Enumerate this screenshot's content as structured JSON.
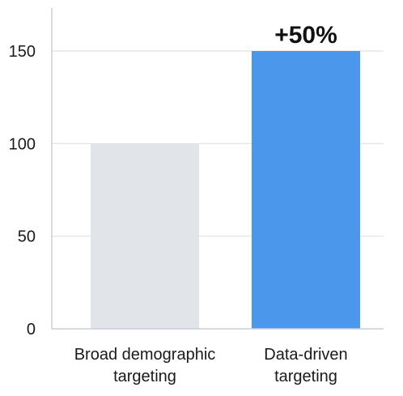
{
  "chart_data": {
    "type": "bar",
    "categories": [
      [
        "Broad demographic",
        "targeting"
      ],
      [
        "Data-driven",
        "targeting"
      ]
    ],
    "values": [
      100,
      150
    ],
    "ylim": [
      0,
      170
    ],
    "yticks": [
      0,
      50,
      100,
      150
    ],
    "grid": true,
    "colors": [
      "#e1e5ea",
      "#4b97ec"
    ],
    "annotations": [
      {
        "category_index": 1,
        "text": "+50%"
      }
    ]
  },
  "style": {
    "grid_color": "#dde1ea",
    "axis_color": "#c9ced8"
  }
}
